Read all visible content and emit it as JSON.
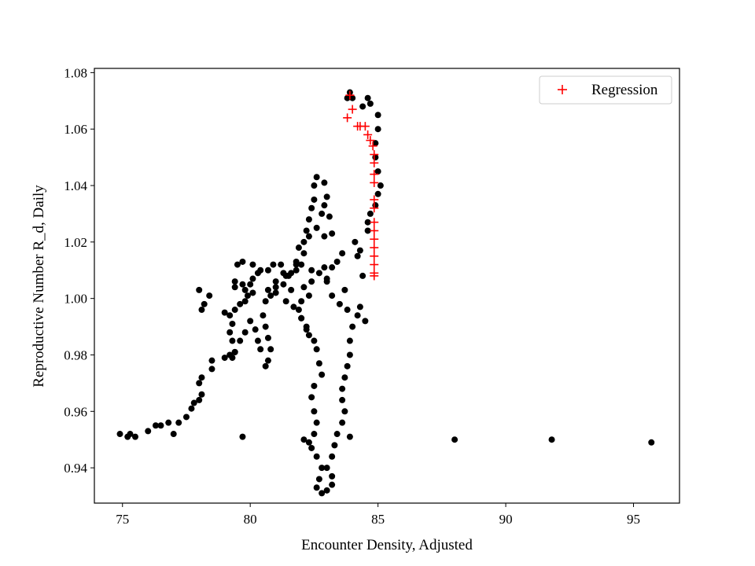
{
  "chart_data": {
    "type": "scatter",
    "title": "",
    "xlabel": "Encounter Density, Adjusted",
    "ylabel": "Reproductive Number R_d, Daily",
    "xlim": [
      73.9,
      96.8
    ],
    "ylim": [
      0.9275,
      1.0815
    ],
    "xticks": [
      75,
      80,
      85,
      90,
      95
    ],
    "yticks": [
      0.94,
      0.96,
      0.98,
      1.0,
      1.02,
      1.04,
      1.06,
      1.08
    ],
    "xtick_labels": [
      "75",
      "80",
      "85",
      "90",
      "95"
    ],
    "ytick_labels": [
      "0.94",
      "0.96",
      "0.98",
      "1.00",
      "1.02",
      "1.04",
      "1.06",
      "1.08"
    ],
    "grid": false,
    "legend": {
      "position": "top-right",
      "entries": [
        "Regression"
      ]
    },
    "series": [
      {
        "marker": "circle",
        "color": "#000000",
        "points": [
          [
            74.9,
            0.952
          ],
          [
            75.2,
            0.951
          ],
          [
            75.3,
            0.952
          ],
          [
            75.5,
            0.951
          ],
          [
            76.0,
            0.953
          ],
          [
            76.3,
            0.955
          ],
          [
            76.5,
            0.955
          ],
          [
            76.8,
            0.956
          ],
          [
            77.0,
            0.952
          ],
          [
            77.2,
            0.956
          ],
          [
            77.5,
            0.958
          ],
          [
            77.7,
            0.961
          ],
          [
            77.8,
            0.963
          ],
          [
            78.0,
            0.964
          ],
          [
            78.1,
            0.966
          ],
          [
            78.0,
            0.97
          ],
          [
            78.1,
            0.972
          ],
          [
            78.5,
            0.975
          ],
          [
            78.5,
            0.978
          ],
          [
            79.0,
            0.979
          ],
          [
            79.2,
            0.98
          ],
          [
            79.4,
            0.981
          ],
          [
            79.3,
            0.985
          ],
          [
            79.2,
            0.988
          ],
          [
            79.3,
            0.991
          ],
          [
            79.2,
            0.994
          ],
          [
            79.0,
            0.995
          ],
          [
            79.4,
            0.996
          ],
          [
            79.6,
            0.998
          ],
          [
            79.8,
            0.999
          ],
          [
            79.9,
            1.001
          ],
          [
            80.1,
            1.002
          ],
          [
            80.0,
            1.005
          ],
          [
            79.7,
            1.005
          ],
          [
            79.4,
            1.006
          ],
          [
            79.5,
            1.012
          ],
          [
            79.7,
            1.013
          ],
          [
            80.1,
            1.012
          ],
          [
            80.4,
            1.01
          ],
          [
            80.7,
            1.01
          ],
          [
            80.9,
            1.012
          ],
          [
            81.3,
            1.009
          ],
          [
            81.6,
            1.009
          ],
          [
            81.8,
            1.01
          ],
          [
            82.0,
            1.012
          ],
          [
            82.1,
            1.016
          ],
          [
            82.1,
            1.02
          ],
          [
            82.2,
            1.024
          ],
          [
            82.3,
            1.028
          ],
          [
            82.4,
            1.032
          ],
          [
            82.5,
            1.035
          ],
          [
            82.5,
            1.04
          ],
          [
            82.6,
            1.043
          ],
          [
            82.9,
            1.041
          ],
          [
            83.0,
            1.036
          ],
          [
            82.9,
            1.033
          ],
          [
            82.8,
            1.03
          ],
          [
            83.1,
            1.029
          ],
          [
            83.2,
            1.023
          ],
          [
            82.9,
            1.022
          ],
          [
            82.6,
            1.025
          ],
          [
            82.3,
            1.022
          ],
          [
            81.9,
            1.018
          ],
          [
            81.8,
            1.012
          ],
          [
            81.4,
            1.008
          ],
          [
            81.0,
            1.006
          ],
          [
            80.7,
            1.003
          ],
          [
            80.6,
            0.999
          ],
          [
            80.5,
            0.994
          ],
          [
            80.6,
            0.99
          ],
          [
            80.7,
            0.986
          ],
          [
            80.8,
            0.982
          ],
          [
            80.7,
            0.978
          ],
          [
            80.6,
            0.976
          ],
          [
            80.4,
            0.982
          ],
          [
            80.3,
            0.985
          ],
          [
            80.2,
            0.989
          ],
          [
            80.0,
            0.992
          ],
          [
            79.8,
            0.988
          ],
          [
            79.6,
            0.985
          ],
          [
            79.4,
            0.981
          ],
          [
            79.3,
            0.979
          ],
          [
            78.0,
            1.003
          ],
          [
            78.2,
            0.998
          ],
          [
            78.1,
            0.996
          ],
          [
            78.4,
            1.001
          ],
          [
            79.4,
            1.004
          ],
          [
            79.8,
            1.003
          ],
          [
            80.1,
            1.007
          ],
          [
            80.3,
            1.009
          ],
          [
            81.0,
            1.002
          ],
          [
            81.4,
            0.999
          ],
          [
            81.7,
            0.997
          ],
          [
            81.9,
            0.996
          ],
          [
            82.0,
            0.993
          ],
          [
            82.2,
            0.99
          ],
          [
            82.3,
            0.987
          ],
          [
            82.5,
            0.985
          ],
          [
            82.6,
            0.982
          ],
          [
            82.7,
            0.977
          ],
          [
            82.8,
            0.973
          ],
          [
            82.5,
            0.969
          ],
          [
            82.4,
            0.965
          ],
          [
            82.5,
            0.96
          ],
          [
            82.6,
            0.956
          ],
          [
            82.5,
            0.952
          ],
          [
            82.4,
            0.947
          ],
          [
            82.6,
            0.944
          ],
          [
            82.8,
            0.94
          ],
          [
            82.7,
            0.936
          ],
          [
            82.6,
            0.933
          ],
          [
            82.8,
            0.931
          ],
          [
            83.0,
            0.932
          ],
          [
            83.2,
            0.934
          ],
          [
            83.2,
            0.937
          ],
          [
            83.0,
            0.94
          ],
          [
            83.2,
            0.944
          ],
          [
            83.3,
            0.948
          ],
          [
            83.4,
            0.952
          ],
          [
            83.6,
            0.956
          ],
          [
            83.7,
            0.96
          ],
          [
            83.6,
            0.964
          ],
          [
            83.6,
            0.968
          ],
          [
            83.7,
            0.972
          ],
          [
            83.8,
            0.976
          ],
          [
            83.9,
            0.98
          ],
          [
            83.9,
            0.985
          ],
          [
            84.0,
            0.99
          ],
          [
            84.2,
            0.994
          ],
          [
            84.3,
            0.997
          ],
          [
            84.5,
            0.992
          ],
          [
            84.4,
            1.008
          ],
          [
            84.2,
            1.015
          ],
          [
            84.3,
            1.017
          ],
          [
            84.1,
            1.02
          ],
          [
            84.6,
            1.024
          ],
          [
            84.6,
            1.027
          ],
          [
            84.7,
            1.03
          ],
          [
            84.9,
            1.033
          ],
          [
            85.0,
            1.037
          ],
          [
            85.1,
            1.04
          ],
          [
            85.0,
            1.045
          ],
          [
            84.9,
            1.05
          ],
          [
            84.9,
            1.055
          ],
          [
            85.0,
            1.06
          ],
          [
            85.0,
            1.065
          ],
          [
            84.7,
            1.069
          ],
          [
            84.6,
            1.071
          ],
          [
            84.4,
            1.068
          ],
          [
            84.0,
            1.071
          ],
          [
            83.9,
            1.073
          ],
          [
            83.8,
            1.071
          ],
          [
            83.2,
            1.011
          ],
          [
            83.4,
            1.013
          ],
          [
            83.6,
            1.016
          ],
          [
            83.0,
            1.006
          ],
          [
            83.2,
            1.001
          ],
          [
            83.5,
            0.998
          ],
          [
            83.8,
            0.996
          ],
          [
            82.0,
            0.999
          ],
          [
            81.6,
            1.003
          ],
          [
            81.3,
            1.005
          ],
          [
            81.0,
            1.004
          ],
          [
            80.8,
            1.001
          ],
          [
            81.2,
            1.012
          ],
          [
            81.5,
            1.008
          ],
          [
            82.1,
            1.004
          ],
          [
            82.4,
            1.006
          ],
          [
            82.3,
            1.001
          ],
          [
            82.0,
            0.993
          ],
          [
            82.2,
            0.989
          ],
          [
            81.8,
            1.013
          ],
          [
            82.4,
            1.01
          ],
          [
            82.7,
            1.009
          ],
          [
            82.9,
            1.011
          ],
          [
            83.0,
            1.007
          ],
          [
            83.7,
            1.003
          ],
          [
            79.7,
            0.951
          ],
          [
            82.1,
            0.95
          ],
          [
            82.3,
            0.949
          ],
          [
            83.9,
            0.951
          ],
          [
            88.0,
            0.95
          ],
          [
            91.8,
            0.95
          ],
          [
            95.7,
            0.949
          ]
        ]
      },
      {
        "name": "Regression",
        "marker": "plus",
        "color": "#ff0000",
        "points": [
          [
            83.8,
            1.064
          ],
          [
            83.9,
            1.072
          ],
          [
            84.0,
            1.067
          ],
          [
            84.2,
            1.061
          ],
          [
            84.3,
            1.061
          ],
          [
            84.5,
            1.061
          ],
          [
            84.6,
            1.058
          ],
          [
            84.7,
            1.056
          ],
          [
            84.8,
            1.054
          ],
          [
            84.85,
            1.051
          ],
          [
            84.85,
            1.048
          ],
          [
            84.85,
            1.044
          ],
          [
            84.85,
            1.041
          ],
          [
            84.85,
            1.035
          ],
          [
            84.85,
            1.032
          ],
          [
            84.85,
            1.027
          ],
          [
            84.85,
            1.024
          ],
          [
            84.85,
            1.021
          ],
          [
            84.85,
            1.018
          ],
          [
            84.85,
            1.015
          ],
          [
            84.85,
            1.012
          ],
          [
            84.85,
            1.009
          ],
          [
            84.85,
            1.008
          ]
        ]
      }
    ]
  }
}
